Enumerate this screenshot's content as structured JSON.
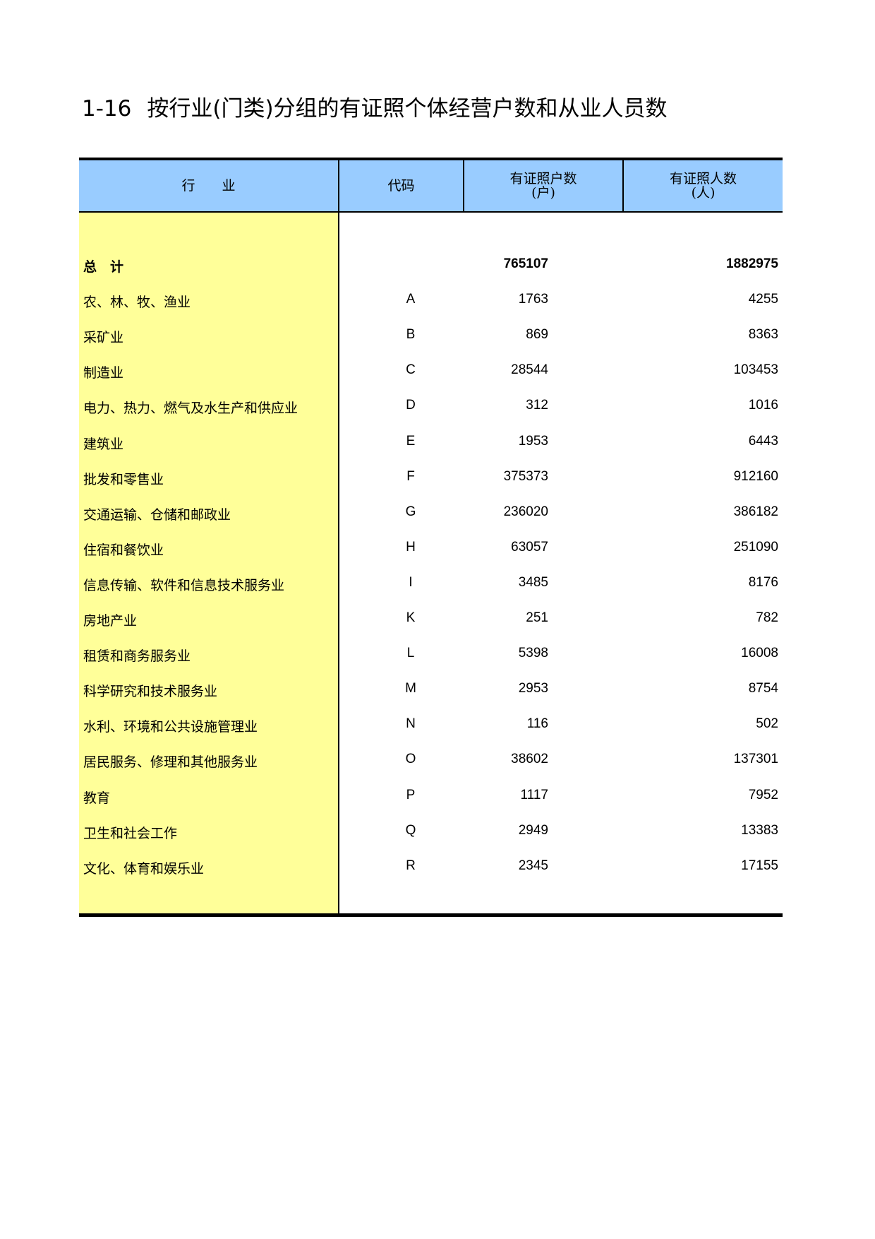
{
  "title": {
    "number": "1-16",
    "text": "按行业(门类)分组的有证照个体经营户数和从业人员数"
  },
  "headers": {
    "industry": "行　　业",
    "code": "代码",
    "households": "有证照户数",
    "households_unit": "(户)",
    "persons": "有证照人数",
    "persons_unit": "(人)"
  },
  "colors": {
    "header_bg": "#99ccff",
    "industry_col_bg": "#ffff99"
  },
  "rows": [
    {
      "name": "总　计",
      "code": "",
      "households": "765107",
      "persons": "1882975",
      "bold": true
    },
    {
      "name": "农、林、牧、渔业",
      "code": "A",
      "households": "1763",
      "persons": "4255"
    },
    {
      "name": "采矿业",
      "code": "B",
      "households": "869",
      "persons": "8363"
    },
    {
      "name": "制造业",
      "code": "C",
      "households": "28544",
      "persons": "103453"
    },
    {
      "name": "电力、热力、燃气及水生产和供应业",
      "code": "D",
      "households": "312",
      "persons": "1016"
    },
    {
      "name": "建筑业",
      "code": "E",
      "households": "1953",
      "persons": "6443"
    },
    {
      "name": "批发和零售业",
      "code": "F",
      "households": "375373",
      "persons": "912160"
    },
    {
      "name": "交通运输、仓储和邮政业",
      "code": "G",
      "households": "236020",
      "persons": "386182"
    },
    {
      "name": "住宿和餐饮业",
      "code": "H",
      "households": "63057",
      "persons": "251090"
    },
    {
      "name": "信息传输、软件和信息技术服务业",
      "code": "I",
      "households": "3485",
      "persons": "8176"
    },
    {
      "name": "房地产业",
      "code": "K",
      "households": "251",
      "persons": "782"
    },
    {
      "name": "租赁和商务服务业",
      "code": "L",
      "households": "5398",
      "persons": "16008"
    },
    {
      "name": "科学研究和技术服务业",
      "code": "M",
      "households": "2953",
      "persons": "8754"
    },
    {
      "name": "水利、环境和公共设施管理业",
      "code": "N",
      "households": "116",
      "persons": "502"
    },
    {
      "name": "居民服务、修理和其他服务业",
      "code": "O",
      "households": "38602",
      "persons": "137301"
    },
    {
      "name": "教育",
      "code": "P",
      "households": "1117",
      "persons": "7952"
    },
    {
      "name": "卫生和社会工作",
      "code": "Q",
      "households": "2949",
      "persons": "13383"
    },
    {
      "name": "文化、体育和娱乐业",
      "code": "R",
      "households": "2345",
      "persons": "17155"
    }
  ]
}
